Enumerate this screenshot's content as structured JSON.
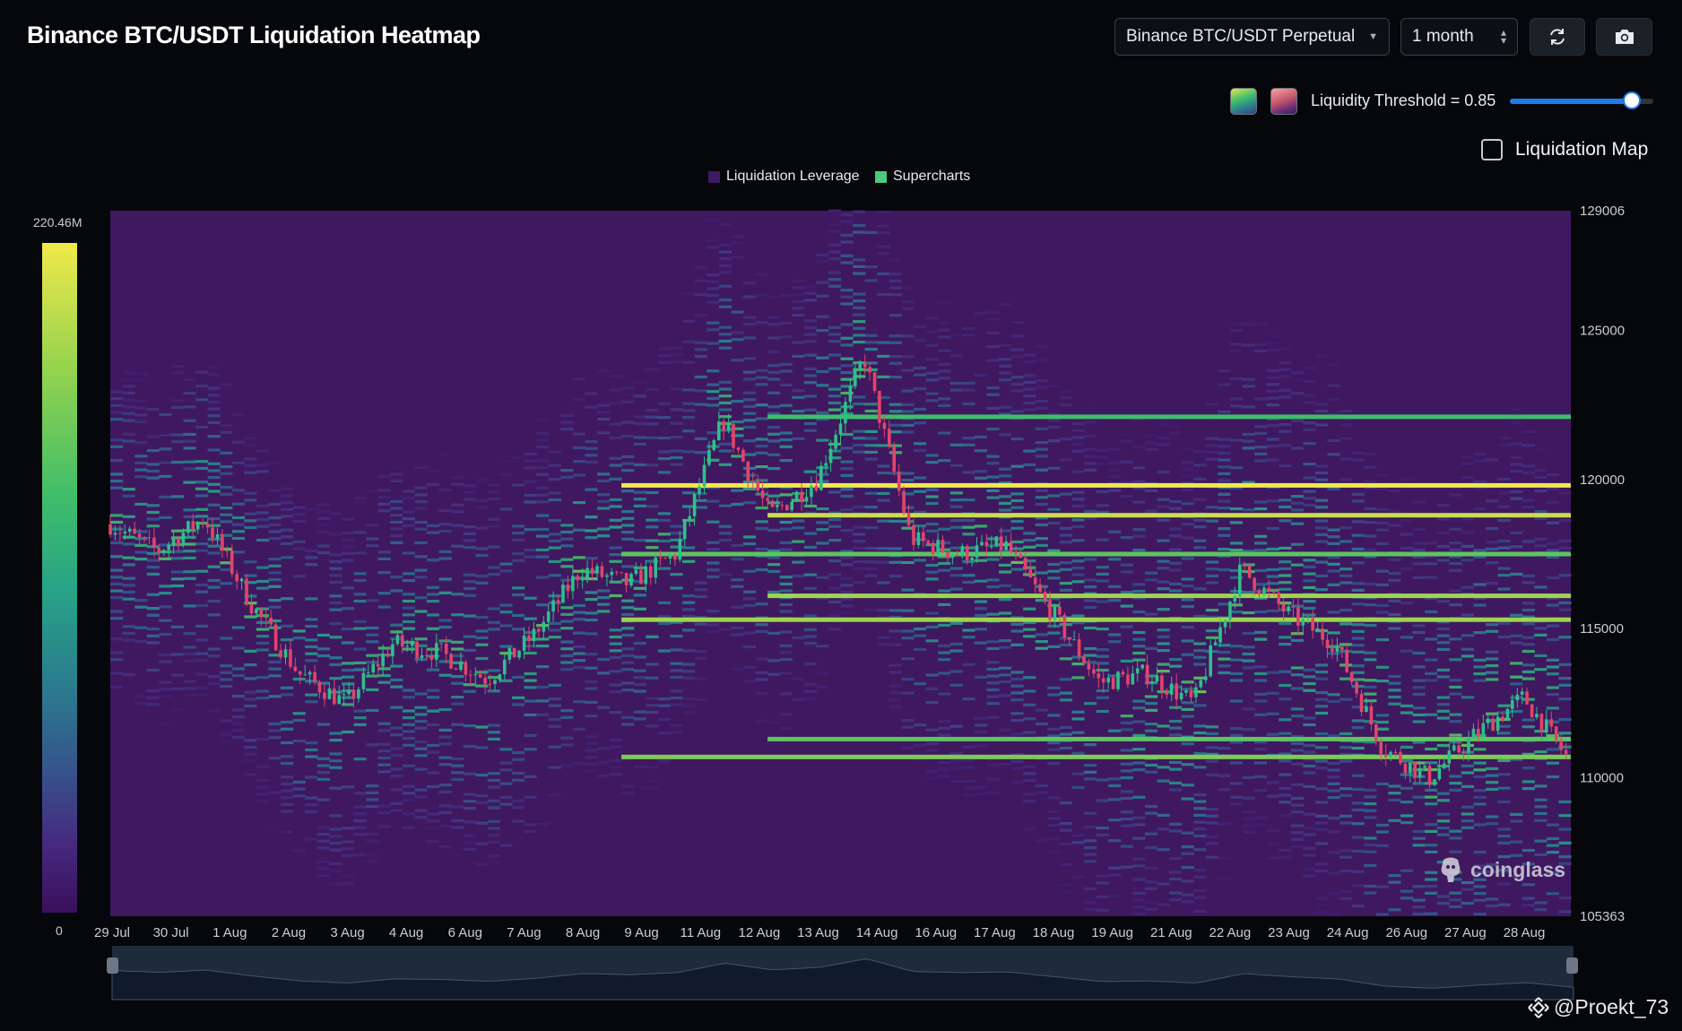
{
  "header": {
    "title": "Binance BTC/USDT Liquidation Heatmap",
    "market_select": "Binance BTC/USDT Perpetual",
    "range_select": "1 month",
    "refresh_icon": "refresh-icon",
    "camera_icon": "camera-icon"
  },
  "controls": {
    "threshold_label": "Liquidity Threshold = 0.85",
    "threshold_value": 0.85,
    "palette_swatches": [
      "viridis-swatch",
      "magma-swatch"
    ],
    "liquidation_map_label": "Liquidation Map",
    "liquidation_map_checked": false
  },
  "legend": {
    "items": [
      {
        "label": "Liquidation Leverage",
        "color": "#3e1a63"
      },
      {
        "label": "Supercharts",
        "color": "#4cc97a"
      }
    ]
  },
  "colorbar": {
    "max_label": "220.46M",
    "min_label": "0"
  },
  "watermark": "coinglass",
  "credit": "@Proekt_73",
  "chart_data": {
    "type": "heatmap",
    "title": "Binance BTC/USDT Liquidation Heatmap",
    "x_tick_labels": [
      "29 Jul",
      "30 Jul",
      "1 Aug",
      "2 Aug",
      "3 Aug",
      "4 Aug",
      "6 Aug",
      "7 Aug",
      "8 Aug",
      "9 Aug",
      "11 Aug",
      "12 Aug",
      "13 Aug",
      "14 Aug",
      "16 Aug",
      "17 Aug",
      "18 Aug",
      "19 Aug",
      "21 Aug",
      "22 Aug",
      "23 Aug",
      "24 Aug",
      "26 Aug",
      "27 Aug",
      "28 Aug"
    ],
    "y_tick_labels": [
      "129006",
      "125000",
      "120000",
      "115000",
      "110000",
      "105363"
    ],
    "y_ticks": [
      129006,
      125000,
      120000,
      115000,
      110000,
      105363
    ],
    "ylim": [
      105363,
      129006
    ],
    "colorbar_range": [
      0,
      220.46
    ],
    "colorbar_unit": "M",
    "price_path": [
      {
        "date": "2025-07-29",
        "price": 118500
      },
      {
        "date": "2025-07-30",
        "price": 117600
      },
      {
        "date": "2025-07-31",
        "price": 118700
      },
      {
        "date": "2025-08-01",
        "price": 115800
      },
      {
        "date": "2025-08-02",
        "price": 113500
      },
      {
        "date": "2025-08-03",
        "price": 112500
      },
      {
        "date": "2025-08-04",
        "price": 114500
      },
      {
        "date": "2025-08-05",
        "price": 114200
      },
      {
        "date": "2025-08-06",
        "price": 113300
      },
      {
        "date": "2025-08-07",
        "price": 114800
      },
      {
        "date": "2025-08-08",
        "price": 117000
      },
      {
        "date": "2025-08-09",
        "price": 116500
      },
      {
        "date": "2025-08-10",
        "price": 117500
      },
      {
        "date": "2025-08-11",
        "price": 122000
      },
      {
        "date": "2025-08-12",
        "price": 118800
      },
      {
        "date": "2025-08-13",
        "price": 120000
      },
      {
        "date": "2025-08-14",
        "price": 124100
      },
      {
        "date": "2025-08-15",
        "price": 118000
      },
      {
        "date": "2025-08-16",
        "price": 117500
      },
      {
        "date": "2025-08-17",
        "price": 117800
      },
      {
        "date": "2025-08-18",
        "price": 115500
      },
      {
        "date": "2025-08-19",
        "price": 113200
      },
      {
        "date": "2025-08-20",
        "price": 113500
      },
      {
        "date": "2025-08-21",
        "price": 112500
      },
      {
        "date": "2025-08-22",
        "price": 117000
      },
      {
        "date": "2025-08-23",
        "price": 115500
      },
      {
        "date": "2025-08-24",
        "price": 114500
      },
      {
        "date": "2025-08-25",
        "price": 111000
      },
      {
        "date": "2025-08-26",
        "price": 110000
      },
      {
        "date": "2025-08-27",
        "price": 111500
      },
      {
        "date": "2025-08-28",
        "price": 112700
      },
      {
        "date": "2025-08-29",
        "price": 110500
      }
    ],
    "bright_liquidation_levels": [
      {
        "price": 122100,
        "strength": 0.75
      },
      {
        "price": 119800,
        "strength": 1.0
      },
      {
        "price": 118800,
        "strength": 0.95
      },
      {
        "price": 117500,
        "strength": 0.8
      },
      {
        "price": 116100,
        "strength": 0.9
      },
      {
        "price": 115300,
        "strength": 0.9
      },
      {
        "price": 111300,
        "strength": 0.8
      },
      {
        "price": 110700,
        "strength": 0.85
      }
    ]
  }
}
